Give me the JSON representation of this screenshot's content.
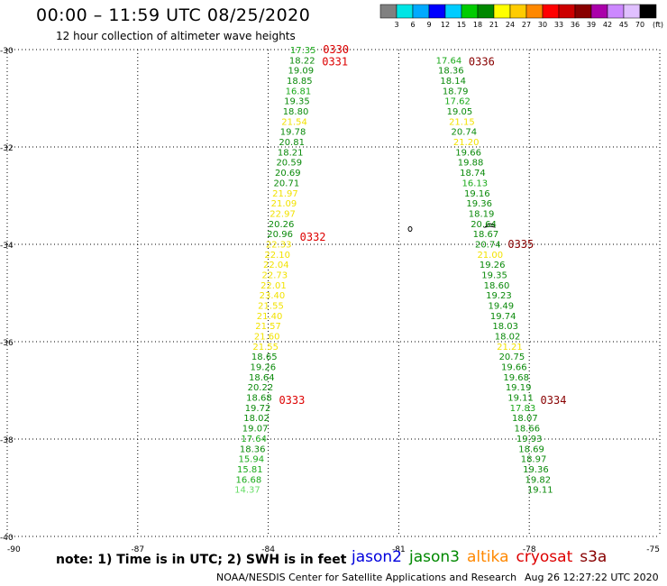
{
  "header": {
    "title": "00:00 – 11:59 UTC 08/25/2020",
    "subtitle": "12 hour collection of altimeter wave heights"
  },
  "colorbar": {
    "unit": "(ft)",
    "colors": [
      "#808080",
      "#00e5e5",
      "#00aaff",
      "#0000ff",
      "#00ccff",
      "#00cc00",
      "#008800",
      "#ffff00",
      "#ffcc00",
      "#ff8800",
      "#ff0000",
      "#cc0000",
      "#880000",
      "#aa00aa",
      "#cc88ff",
      "#e0c0ff",
      "#000000"
    ],
    "ticks": [
      "3",
      "6",
      "9",
      "12",
      "15",
      "18",
      "21",
      "24",
      "27",
      "30",
      "33",
      "36",
      "39",
      "42",
      "45",
      "70"
    ]
  },
  "map": {
    "lat_labels": [
      "-30",
      "-32",
      "-34",
      "-36",
      "-38",
      "-40"
    ],
    "lon_labels": [
      "-90",
      "-87",
      "-84",
      "-81",
      "-78",
      "-75"
    ]
  },
  "chart_data": {
    "type": "scatter",
    "title": "00:00 – 11:59 UTC 08/25/2020",
    "xlabel": "",
    "ylabel": "",
    "xlim": [
      -90,
      -75
    ],
    "ylim": [
      -40,
      -30
    ],
    "grid": true,
    "tracks": [
      {
        "name": "track-west",
        "times": [
          {
            "label": "0330",
            "lat": -30.0
          },
          {
            "label": "0331",
            "lat": -30.25
          },
          {
            "label": "0332",
            "lat": -33.85
          },
          {
            "label": "0333",
            "lat": -37.2
          }
        ],
        "points": [
          {
            "lon": -83.2,
            "lat": -30.0,
            "v": "17.35"
          },
          {
            "lon": -83.22,
            "lat": -30.21,
            "v": "18.22"
          },
          {
            "lon": -83.25,
            "lat": -30.42,
            "v": "19.09"
          },
          {
            "lon": -83.28,
            "lat": -30.63,
            "v": "18.85"
          },
          {
            "lon": -83.31,
            "lat": -30.84,
            "v": "16.81"
          },
          {
            "lon": -83.34,
            "lat": -31.05,
            "v": "19.35"
          },
          {
            "lon": -83.37,
            "lat": -31.26,
            "v": "18.80"
          },
          {
            "lon": -83.4,
            "lat": -31.47,
            "v": "21.54"
          },
          {
            "lon": -83.43,
            "lat": -31.68,
            "v": "19.78"
          },
          {
            "lon": -83.46,
            "lat": -31.89,
            "v": "20.81"
          },
          {
            "lon": -83.49,
            "lat": -32.1,
            "v": "18.21"
          },
          {
            "lon": -83.52,
            "lat": -32.31,
            "v": "20.59"
          },
          {
            "lon": -83.55,
            "lat": -32.52,
            "v": "20.69"
          },
          {
            "lon": -83.58,
            "lat": -32.73,
            "v": "20.71"
          },
          {
            "lon": -83.61,
            "lat": -32.94,
            "v": "21.97"
          },
          {
            "lon": -83.64,
            "lat": -33.15,
            "v": "21.09"
          },
          {
            "lon": -83.67,
            "lat": -33.36,
            "v": "22.97"
          },
          {
            "lon": -83.7,
            "lat": -33.57,
            "v": "20.26"
          },
          {
            "lon": -83.73,
            "lat": -33.78,
            "v": "20.96"
          },
          {
            "lon": -83.76,
            "lat": -33.99,
            "v": "22.33"
          },
          {
            "lon": -83.79,
            "lat": -34.2,
            "v": "22.10"
          },
          {
            "lon": -83.82,
            "lat": -34.41,
            "v": "22.04"
          },
          {
            "lon": -83.85,
            "lat": -34.62,
            "v": "22.73"
          },
          {
            "lon": -83.88,
            "lat": -34.83,
            "v": "22.01"
          },
          {
            "lon": -83.91,
            "lat": -35.04,
            "v": "23.40"
          },
          {
            "lon": -83.94,
            "lat": -35.25,
            "v": "21.55"
          },
          {
            "lon": -83.97,
            "lat": -35.46,
            "v": "21.40"
          },
          {
            "lon": -84.0,
            "lat": -35.67,
            "v": "21.57"
          },
          {
            "lon": -84.03,
            "lat": -35.88,
            "v": "21.60"
          },
          {
            "lon": -84.06,
            "lat": -36.09,
            "v": "21.55"
          },
          {
            "lon": -84.09,
            "lat": -36.3,
            "v": "18.65"
          },
          {
            "lon": -84.12,
            "lat": -36.51,
            "v": "19.26"
          },
          {
            "lon": -84.15,
            "lat": -36.72,
            "v": "18.64"
          },
          {
            "lon": -84.18,
            "lat": -36.93,
            "v": "20.22"
          },
          {
            "lon": -84.21,
            "lat": -37.14,
            "v": "18.68"
          },
          {
            "lon": -84.24,
            "lat": -37.35,
            "v": "19.72"
          },
          {
            "lon": -84.27,
            "lat": -37.56,
            "v": "18.02"
          },
          {
            "lon": -84.3,
            "lat": -37.77,
            "v": "19.07"
          },
          {
            "lon": -84.33,
            "lat": -37.98,
            "v": "17.64"
          },
          {
            "lon": -84.36,
            "lat": -38.19,
            "v": "18.36"
          },
          {
            "lon": -84.39,
            "lat": -38.4,
            "v": "15.94"
          },
          {
            "lon": -84.42,
            "lat": -38.61,
            "v": "15.81"
          },
          {
            "lon": -84.45,
            "lat": -38.82,
            "v": "16.68"
          },
          {
            "lon": -84.48,
            "lat": -39.03,
            "v": "14.37"
          }
        ]
      },
      {
        "name": "track-east",
        "times": [
          {
            "label": "0336",
            "lat": -30.25
          },
          {
            "label": "0335",
            "lat": -34.0
          },
          {
            "label": "0334",
            "lat": -37.2
          }
        ],
        "points": [
          {
            "lon": -79.85,
            "lat": -30.21,
            "v": "17.64"
          },
          {
            "lon": -79.8,
            "lat": -30.42,
            "v": "18.36"
          },
          {
            "lon": -79.75,
            "lat": -30.63,
            "v": "18.14"
          },
          {
            "lon": -79.7,
            "lat": -30.84,
            "v": "18.79"
          },
          {
            "lon": -79.65,
            "lat": -31.05,
            "v": "17.62"
          },
          {
            "lon": -79.6,
            "lat": -31.26,
            "v": "19.05"
          },
          {
            "lon": -79.55,
            "lat": -31.47,
            "v": "21.15"
          },
          {
            "lon": -79.5,
            "lat": -31.68,
            "v": "20.74"
          },
          {
            "lon": -79.45,
            "lat": -31.89,
            "v": "21.20"
          },
          {
            "lon": -79.4,
            "lat": -32.1,
            "v": "19.66"
          },
          {
            "lon": -79.35,
            "lat": -32.31,
            "v": "19.88"
          },
          {
            "lon": -79.3,
            "lat": -32.52,
            "v": "18.74"
          },
          {
            "lon": -79.25,
            "lat": -32.73,
            "v": "16.13"
          },
          {
            "lon": -79.2,
            "lat": -32.94,
            "v": "19.16"
          },
          {
            "lon": -79.15,
            "lat": -33.15,
            "v": "19.36"
          },
          {
            "lon": -79.1,
            "lat": -33.36,
            "v": "18.19"
          },
          {
            "lon": -79.05,
            "lat": -33.57,
            "v": "20.64"
          },
          {
            "lon": -79.0,
            "lat": -33.78,
            "v": "18.67"
          },
          {
            "lon": -78.95,
            "lat": -33.99,
            "v": "20.74"
          },
          {
            "lon": -78.9,
            "lat": -34.2,
            "v": "21.00"
          },
          {
            "lon": -78.85,
            "lat": -34.41,
            "v": "19.26"
          },
          {
            "lon": -78.8,
            "lat": -34.62,
            "v": "19.35"
          },
          {
            "lon": -78.75,
            "lat": -34.83,
            "v": "18.60"
          },
          {
            "lon": -78.7,
            "lat": -35.04,
            "v": "19.23"
          },
          {
            "lon": -78.65,
            "lat": -35.25,
            "v": "19.49"
          },
          {
            "lon": -78.6,
            "lat": -35.46,
            "v": "19.74"
          },
          {
            "lon": -78.55,
            "lat": -35.67,
            "v": "18.03"
          },
          {
            "lon": -78.5,
            "lat": -35.88,
            "v": "18.02"
          },
          {
            "lon": -78.45,
            "lat": -36.09,
            "v": "21.21"
          },
          {
            "lon": -78.4,
            "lat": -36.3,
            "v": "20.75"
          },
          {
            "lon": -78.35,
            "lat": -36.51,
            "v": "19.66"
          },
          {
            "lon": -78.3,
            "lat": -36.72,
            "v": "19.68"
          },
          {
            "lon": -78.25,
            "lat": -36.93,
            "v": "19.19"
          },
          {
            "lon": -78.2,
            "lat": -37.14,
            "v": "19.11"
          },
          {
            "lon": -78.15,
            "lat": -37.35,
            "v": "17.83"
          },
          {
            "lon": -78.1,
            "lat": -37.56,
            "v": "18.07"
          },
          {
            "lon": -78.05,
            "lat": -37.77,
            "v": "18.66"
          },
          {
            "lon": -78.0,
            "lat": -37.98,
            "v": "19.93"
          },
          {
            "lon": -77.95,
            "lat": -38.19,
            "v": "18.69"
          },
          {
            "lon": -77.9,
            "lat": -38.4,
            "v": "18.97"
          },
          {
            "lon": -77.85,
            "lat": -38.61,
            "v": "19.36"
          },
          {
            "lon": -77.8,
            "lat": -38.82,
            "v": "19.82"
          },
          {
            "lon": -77.75,
            "lat": -39.03,
            "v": "19.11"
          }
        ]
      }
    ]
  },
  "footer": {
    "note": "note: 1) Time is in UTC; 2) SWH is in feet",
    "missions": [
      {
        "name": "jason2",
        "color": "#0000dd"
      },
      {
        "name": "jason3",
        "color": "#008800"
      },
      {
        "name": "altika",
        "color": "#ff8800"
      },
      {
        "name": "cryosat",
        "color": "#dd0000"
      },
      {
        "name": "s3a",
        "color": "#880000"
      }
    ],
    "credit": "NOAA/NESDIS Center for Satellite Applications and Research",
    "timestamp": "Aug 26 12:27:22 UTC 2020"
  }
}
